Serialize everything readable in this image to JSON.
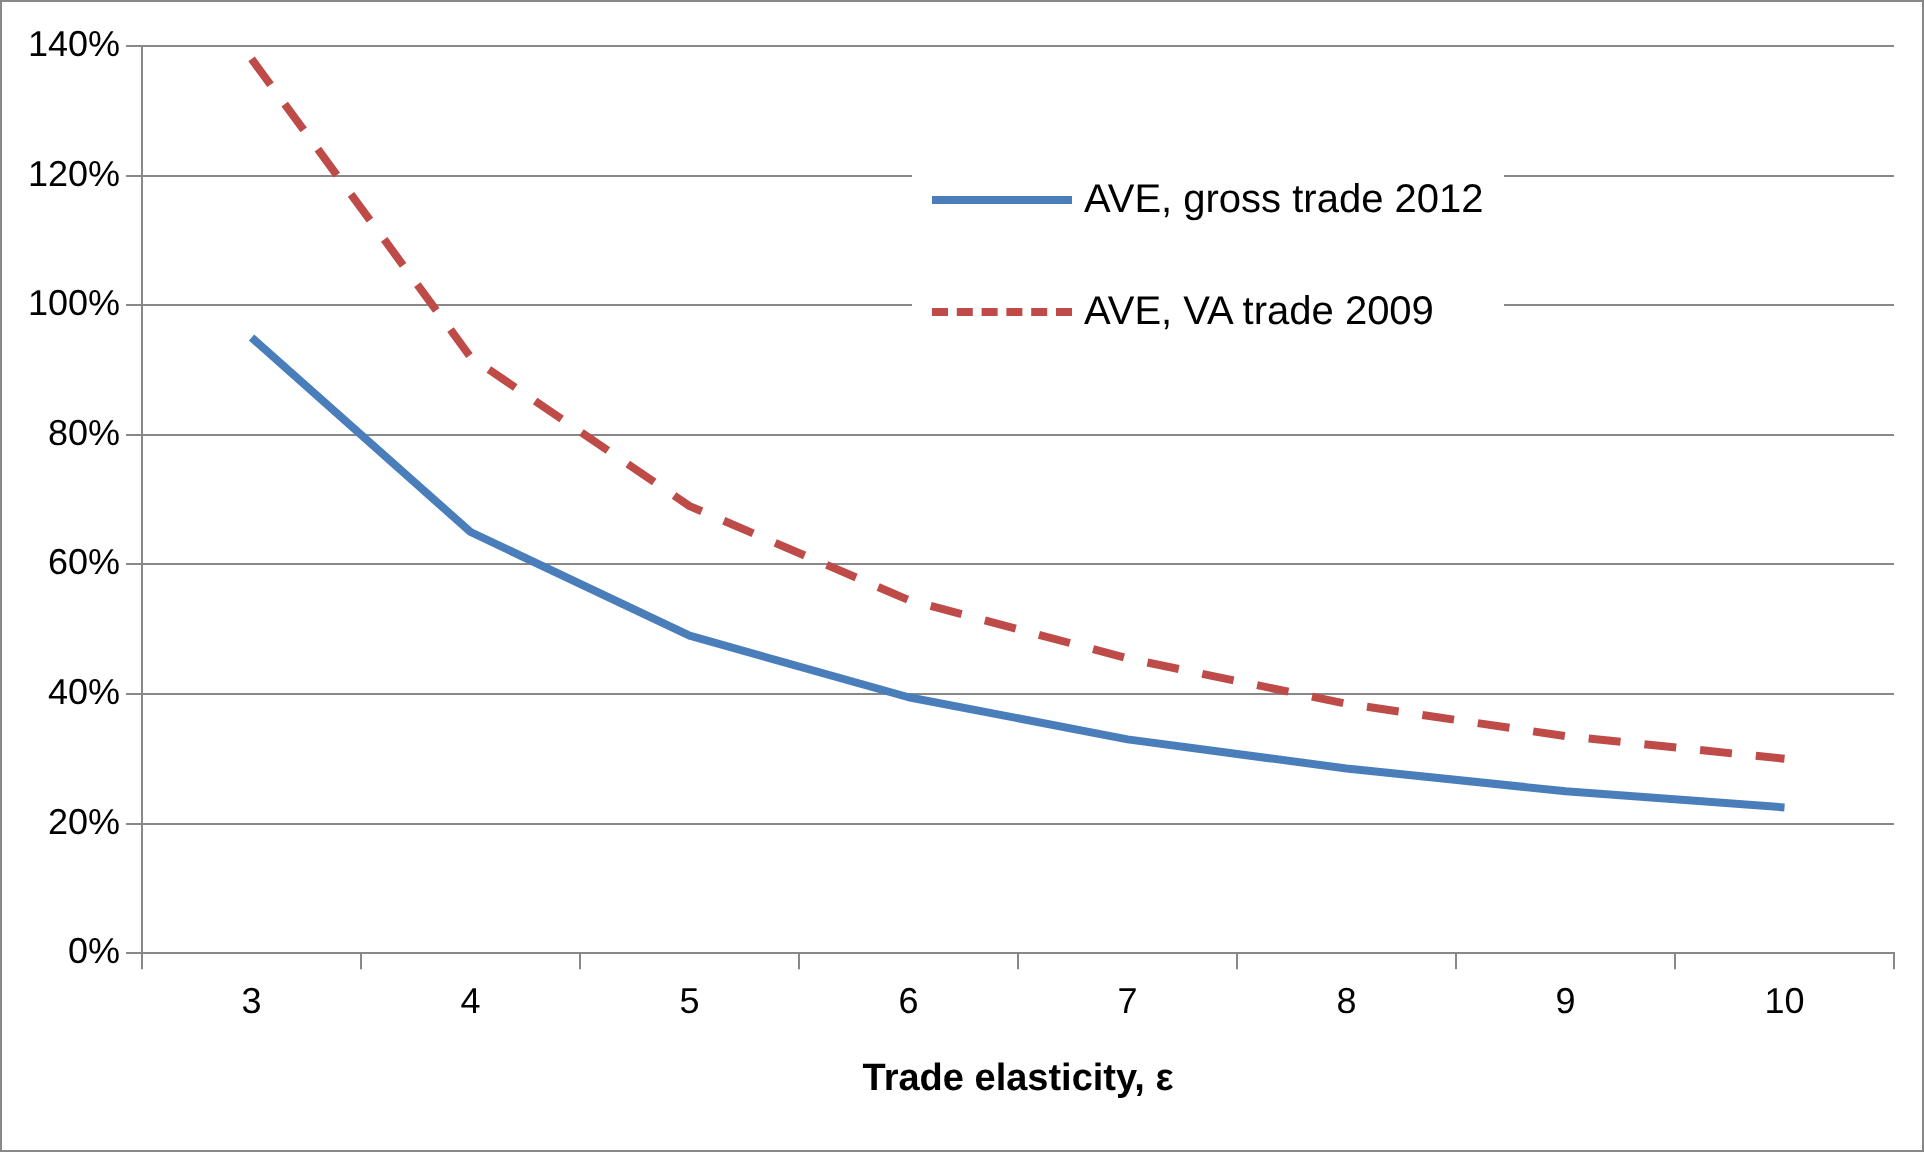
{
  "chart_data": {
    "type": "line",
    "xlabel": "Trade elasticity, ε",
    "categories": [
      "3",
      "4",
      "5",
      "6",
      "7",
      "8",
      "9",
      "10"
    ],
    "series": [
      {
        "name": "AVE, gross trade 2012",
        "color": "#4a7ebb",
        "line_style": "solid",
        "values": [
          95,
          65,
          49,
          39.5,
          33,
          28.5,
          25,
          22.5
        ]
      },
      {
        "name": "AVE, VA trade 2009",
        "color": "#be4b48",
        "line_style": "dashed",
        "values": [
          138,
          92,
          69,
          54.5,
          45.5,
          38.5,
          33.5,
          30
        ]
      }
    ],
    "ylim": [
      0,
      140
    ],
    "yticks": [
      {
        "value": 0,
        "label": "0%"
      },
      {
        "value": 20,
        "label": "20%"
      },
      {
        "value": 40,
        "label": "40%"
      },
      {
        "value": 60,
        "label": "60%"
      },
      {
        "value": 80,
        "label": "80%"
      },
      {
        "value": 100,
        "label": "100%"
      },
      {
        "value": 120,
        "label": "120%"
      },
      {
        "value": 140,
        "label": "140%"
      }
    ],
    "grid": "y",
    "legend": "top right",
    "marker": "none"
  }
}
